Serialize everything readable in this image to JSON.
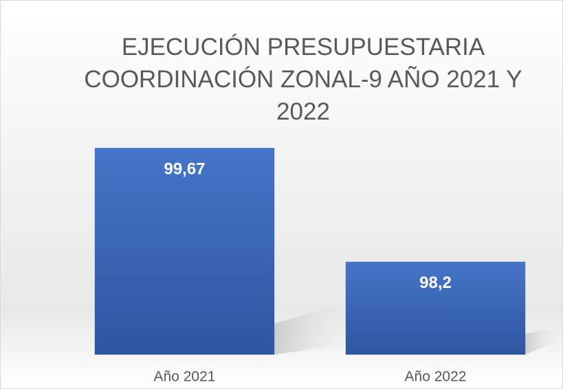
{
  "chart_data": {
    "type": "bar",
    "title": "EJECUCIÓN PRESUPUESTARIA COORDINACIÓN ZONAL-9 AÑO 2021 Y 2022",
    "categories": [
      "Año 2021",
      "Año 2022"
    ],
    "values": [
      99.67,
      98.2
    ],
    "value_labels": [
      "99,67",
      "98,2"
    ],
    "color": "#4472c4",
    "ylim": [
      97,
      100
    ]
  }
}
